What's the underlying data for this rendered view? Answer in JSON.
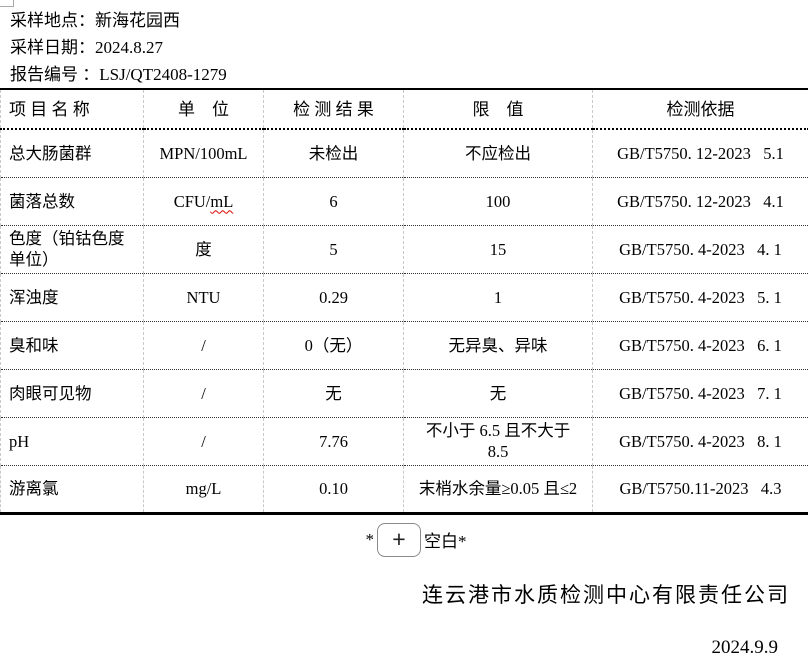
{
  "header": {
    "sampling_location": "采样地点：新海花园西",
    "sampling_date": "采样日期：2024.8.27",
    "report_number": "报告编号 ：LSJ/QT2408-1279"
  },
  "table": {
    "columns": [
      "项 目 名 称",
      "单　位",
      "检 测 结 果",
      "限　值",
      "检测依据"
    ],
    "rows": [
      {
        "name": "总大肠菌群",
        "unit": "MPN/100mL",
        "result": "未检出",
        "limit": "不应检出",
        "basis": "GB/T5750. 12-2023   5.1"
      },
      {
        "name": "菌落总数",
        "unit": "CFU/mL",
        "unit_wavy": "mL",
        "result": "6",
        "limit": "100",
        "basis": "GB/T5750. 12-2023   4.1"
      },
      {
        "name": "色度（铂钴色度\n单位）",
        "unit": "度",
        "result": "5",
        "limit": "15",
        "basis": "GB/T5750. 4-2023   4. 1"
      },
      {
        "name": "浑浊度",
        "unit": "NTU",
        "result": "0.29",
        "limit": "1",
        "basis": "GB/T5750. 4-2023   5. 1"
      },
      {
        "name": "臭和味",
        "unit": "/",
        "result": "0（无）",
        "limit": "无异臭、异味",
        "basis": "GB/T5750. 4-2023   6. 1"
      },
      {
        "name": "肉眼可见物",
        "unit": "/",
        "result": "无",
        "limit": "无",
        "basis": "GB/T5750. 4-2023   7. 1"
      },
      {
        "name": "pH",
        "unit": "/",
        "result": "7.76",
        "limit": "不小于 6.5 且不大于\n8.5",
        "basis": "GB/T5750. 4-2023   8. 1"
      },
      {
        "name": "游离氯",
        "unit": "mg/L",
        "result": "0.10",
        "limit": "末梢水余量≥0.05 且≤2",
        "basis": "GB/T5750.11-2023   4.3"
      }
    ]
  },
  "footer": {
    "blank_prefix": "*",
    "plus_button_label": "+",
    "blank_suffix": "空白*",
    "company": "连云港市水质检测中心有限责任公司",
    "date": "2024.9.9"
  },
  "colors": {
    "spellcheck_red": "#dd0000",
    "gridline_gray": "#c9c9c9",
    "border_black": "#000000",
    "background": "#ffffff"
  }
}
